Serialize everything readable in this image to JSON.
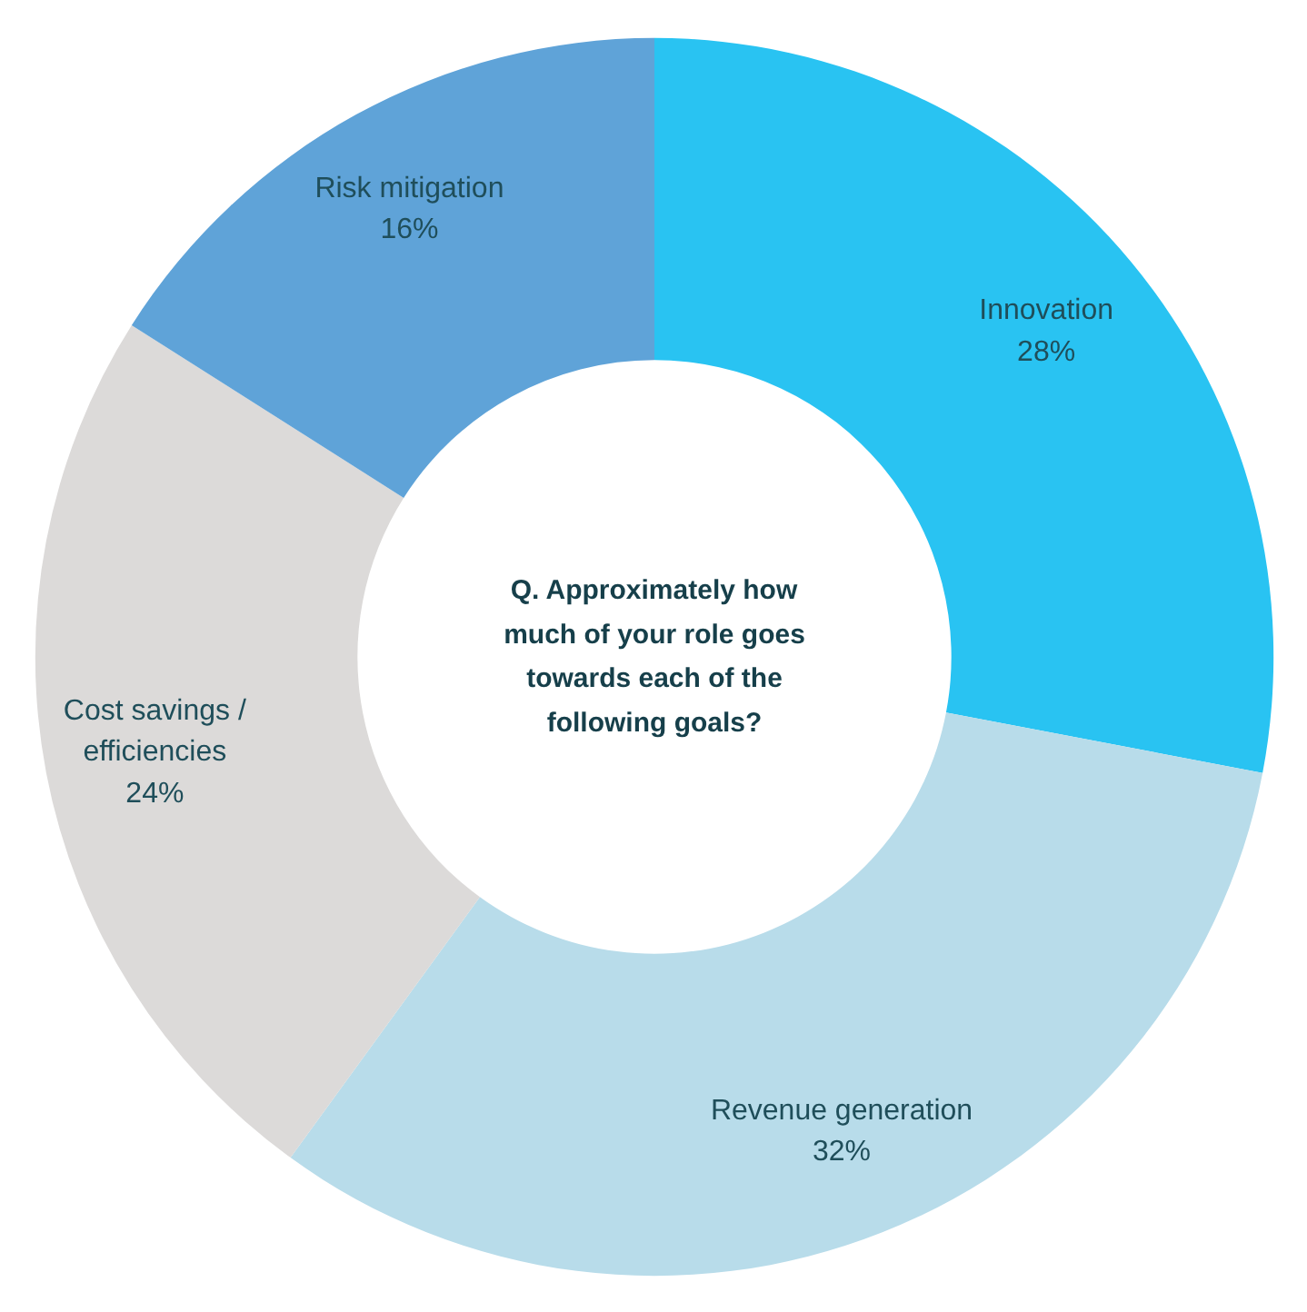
{
  "chart_data": {
    "type": "donut",
    "title": "Q. Approximately how much of your role goes towards each of the following goals?",
    "categories": [
      "Innovation",
      "Revenue generation",
      "Cost savings / efficiencies",
      "Risk mitigation"
    ],
    "values": [
      28,
      32,
      24,
      16
    ],
    "value_labels": [
      "28%",
      "32%",
      "24%",
      "16%"
    ],
    "colors": [
      "#29c3f2",
      "#b8dcea",
      "#dcdad9",
      "#5fa3d8"
    ]
  }
}
